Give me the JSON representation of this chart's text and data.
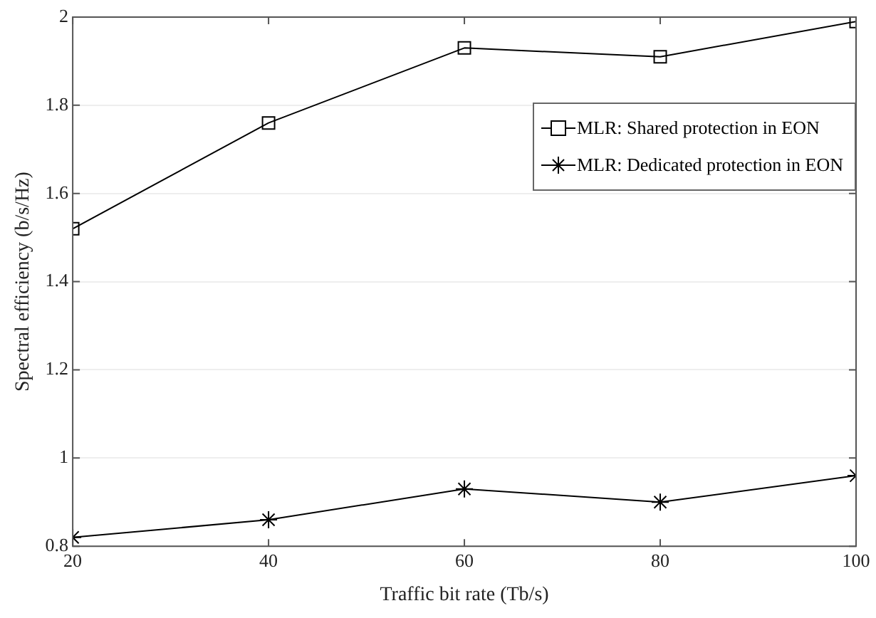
{
  "chart_data": {
    "type": "line",
    "xlabel": "Traffic bit rate (Tb/s)",
    "ylabel": "Spectral efficiency (b/s/Hz)",
    "x": [
      20,
      40,
      60,
      80,
      100
    ],
    "series": [
      {
        "name": "MLR: Shared protection in EON",
        "color": "#000000",
        "marker": "square",
        "values": [
          1.52,
          1.76,
          1.93,
          1.91,
          1.99
        ]
      },
      {
        "name": "MLR: Dedicated protection in EON",
        "color": "#000000",
        "marker": "cross",
        "values": [
          0.82,
          0.86,
          0.93,
          0.9,
          0.96
        ]
      }
    ],
    "xlim": [
      20,
      100
    ],
    "xticks": [
      20,
      40,
      60,
      80,
      100
    ],
    "ylim": [
      0.8,
      2
    ],
    "yticks": [
      0.8,
      1,
      1.2,
      1.4,
      1.6,
      1.8,
      2
    ],
    "grid": "y",
    "legend": "top right",
    "line_style": "solid"
  }
}
